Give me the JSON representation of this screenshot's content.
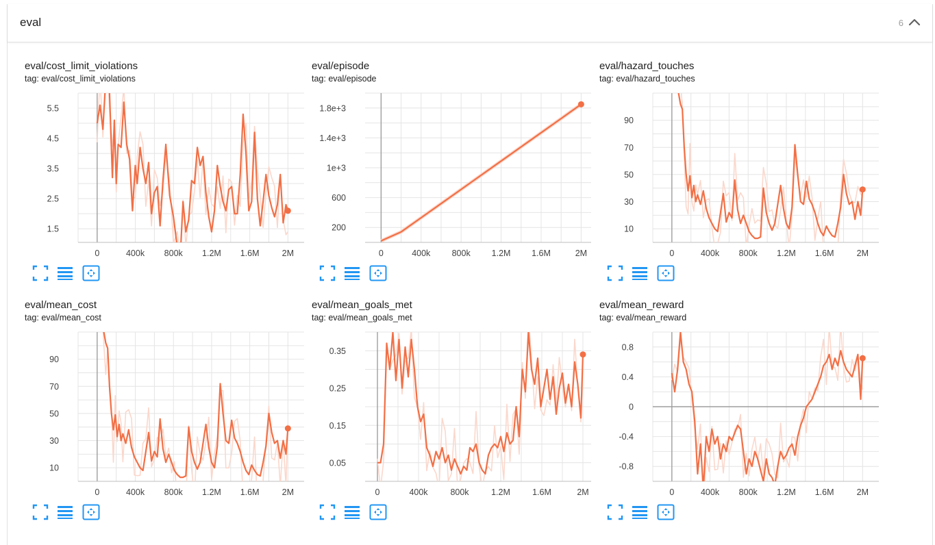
{
  "section": {
    "title": "eval",
    "count": "6"
  },
  "colors": {
    "line": "#f26f45",
    "raw": "#fbd7cb",
    "grid": "#e4e4e4",
    "axis": "#9e9e9e",
    "tool": "#2196f3"
  },
  "icons": {
    "toggle": "chevron-up-icon",
    "fullscreen": "fullscreen-icon",
    "data": "list-icon",
    "fit": "fit-domain-icon"
  },
  "chart_data": [
    {
      "type": "line",
      "title": "eval/cost_limit_violations",
      "tag": "tag: eval/cost_limit_violations",
      "xlim": [
        -200000,
        2170000
      ],
      "ylim": [
        1.05,
        6.0
      ],
      "xticks": [
        0,
        400000,
        800000,
        1200000,
        1600000,
        2000000
      ],
      "xtick_labels": [
        "0",
        "400k",
        "800k",
        "1.2M",
        "1.6M",
        "2M"
      ],
      "yticks": [
        1.5,
        2.5,
        3.5,
        4.5,
        5.5
      ],
      "ytick_labels": [
        "1.5",
        "2.5",
        "3.5",
        "4.5",
        "5.5"
      ],
      "zero_line_y": false,
      "series": [
        {
          "x": [
            0,
            30000,
            60000,
            100000,
            130000,
            160000,
            180000,
            200000,
            220000,
            250000,
            280000,
            310000,
            340000,
            370000,
            400000,
            420000,
            450000,
            480000,
            510000,
            540000,
            570000,
            600000,
            630000,
            660000,
            690000,
            720000,
            760000,
            800000,
            840000,
            870000,
            900000,
            930000,
            960000,
            990000,
            1020000,
            1050000,
            1080000,
            1110000,
            1140000,
            1170000,
            1200000,
            1230000,
            1260000,
            1290000,
            1320000,
            1350000,
            1380000,
            1410000,
            1440000,
            1470000,
            1500000,
            1530000,
            1560000,
            1590000,
            1620000,
            1650000,
            1680000,
            1710000,
            1740000,
            1770000,
            1800000,
            1830000,
            1860000,
            1890000,
            1920000,
            1950000,
            1980000,
            2000000
          ],
          "y": [
            5.0,
            5.6,
            4.8,
            7.0,
            6.0,
            3.2,
            5.1,
            3.0,
            4.3,
            4.2,
            5.7,
            4.3,
            3.8,
            2.1,
            3.6,
            3.0,
            4.2,
            3.5,
            3.0,
            3.7,
            2.0,
            2.7,
            2.9,
            1.6,
            3.1,
            4.3,
            2.6,
            1.9,
            0.9,
            0.5,
            2.4,
            1.4,
            1.8,
            3.1,
            3.0,
            4.2,
            3.6,
            3.9,
            2.7,
            1.9,
            1.4,
            2.1,
            3.6,
            2.9,
            2.4,
            2.1,
            2.8,
            2.9,
            2.0,
            2.0,
            3.3,
            5.3,
            4.0,
            2.1,
            2.4,
            4.7,
            2.5,
            1.6,
            2.4,
            3.3,
            2.6,
            2.2,
            1.9,
            2.3,
            3.3,
            1.7,
            2.3,
            2.1
          ]
        }
      ]
    },
    {
      "type": "line",
      "title": "eval/episode",
      "tag": "tag: eval/episode",
      "xlim": [
        -160000,
        2100000
      ],
      "ylim": [
        0,
        2000
      ],
      "xticks": [
        0,
        400000,
        800000,
        1200000,
        1600000,
        2000000
      ],
      "xtick_labels": [
        "0",
        "400k",
        "800k",
        "1.2M",
        "1.6M",
        "2M"
      ],
      "yticks": [
        200,
        600,
        1000,
        1400,
        1800
      ],
      "ytick_labels": [
        "200",
        "600",
        "1e+3",
        "1.4e+3",
        "1.8e+3"
      ],
      "zero_line_y": false,
      "series": [
        {
          "x": [
            0,
            200000,
            400000,
            600000,
            800000,
            1000000,
            1200000,
            1400000,
            1600000,
            1800000,
            2000000
          ],
          "y": [
            20,
            140,
            330,
            520,
            710,
            900,
            1090,
            1280,
            1470,
            1660,
            1850
          ]
        }
      ]
    },
    {
      "type": "line",
      "title": "eval/hazard_touches",
      "tag": "tag: eval/hazard_touches",
      "xlim": [
        -200000,
        2170000
      ],
      "ylim": [
        0,
        110
      ],
      "xticks": [
        0,
        400000,
        800000,
        1200000,
        1600000,
        2000000
      ],
      "xtick_labels": [
        "0",
        "400k",
        "800k",
        "1.2M",
        "1.6M",
        "2M"
      ],
      "yticks": [
        10,
        30,
        50,
        70,
        90
      ],
      "ytick_labels": [
        "10",
        "30",
        "50",
        "70",
        "90"
      ],
      "zero_line_y": false,
      "series": [
        {
          "x": [
            50000,
            70000,
            90000,
            110000,
            130000,
            150000,
            170000,
            190000,
            210000,
            230000,
            250000,
            270000,
            300000,
            330000,
            360000,
            390000,
            420000,
            450000,
            480000,
            510000,
            540000,
            570000,
            600000,
            630000,
            660000,
            690000,
            720000,
            750000,
            780000,
            810000,
            840000,
            870000,
            900000,
            930000,
            960000,
            990000,
            1020000,
            1050000,
            1080000,
            1110000,
            1140000,
            1170000,
            1200000,
            1230000,
            1260000,
            1290000,
            1320000,
            1350000,
            1380000,
            1410000,
            1440000,
            1470000,
            1500000,
            1530000,
            1560000,
            1590000,
            1620000,
            1650000,
            1680000,
            1710000,
            1740000,
            1770000,
            1800000,
            1830000,
            1860000,
            1890000,
            1920000,
            1950000,
            1980000,
            2000000
          ],
          "y": [
            115,
            110,
            102,
            98,
            70,
            50,
            38,
            49,
            33,
            42,
            30,
            35,
            28,
            38,
            25,
            18,
            14,
            10,
            8,
            22,
            36,
            15,
            22,
            18,
            46,
            24,
            14,
            20,
            14,
            8,
            5,
            3,
            3,
            4,
            40,
            22,
            14,
            9,
            14,
            28,
            42,
            25,
            14,
            10,
            26,
            72,
            50,
            30,
            28,
            45,
            32,
            28,
            22,
            14,
            8,
            5,
            12,
            8,
            5,
            4,
            14,
            26,
            50,
            36,
            28,
            30,
            17,
            30,
            20,
            39
          ]
        }
      ]
    },
    {
      "type": "line",
      "title": "eval/mean_cost",
      "tag": "tag: eval/mean_cost",
      "xlim": [
        -200000,
        2170000
      ],
      "ylim": [
        0,
        110
      ],
      "xticks": [
        0,
        400000,
        800000,
        1200000,
        1600000,
        2000000
      ],
      "xtick_labels": [
        "0",
        "400k",
        "800k",
        "1.2M",
        "1.6M",
        "2M"
      ],
      "yticks": [
        10,
        30,
        50,
        70,
        90
      ],
      "ytick_labels": [
        "10",
        "30",
        "50",
        "70",
        "90"
      ],
      "zero_line_y": false,
      "series": [
        {
          "x": [
            50000,
            70000,
            90000,
            110000,
            130000,
            150000,
            170000,
            190000,
            210000,
            230000,
            250000,
            270000,
            300000,
            330000,
            360000,
            390000,
            420000,
            450000,
            480000,
            510000,
            540000,
            570000,
            600000,
            630000,
            660000,
            690000,
            720000,
            750000,
            780000,
            810000,
            840000,
            870000,
            900000,
            930000,
            960000,
            990000,
            1020000,
            1050000,
            1080000,
            1110000,
            1140000,
            1170000,
            1200000,
            1230000,
            1260000,
            1290000,
            1320000,
            1350000,
            1380000,
            1410000,
            1440000,
            1470000,
            1500000,
            1530000,
            1560000,
            1590000,
            1620000,
            1650000,
            1680000,
            1710000,
            1740000,
            1770000,
            1800000,
            1830000,
            1860000,
            1890000,
            1920000,
            1950000,
            1980000,
            2000000
          ],
          "y": [
            115,
            110,
            102,
            98,
            70,
            50,
            38,
            49,
            33,
            42,
            30,
            35,
            28,
            38,
            25,
            18,
            14,
            10,
            8,
            22,
            36,
            15,
            22,
            18,
            46,
            24,
            14,
            20,
            14,
            8,
            5,
            3,
            3,
            4,
            40,
            22,
            14,
            9,
            14,
            28,
            42,
            25,
            14,
            10,
            26,
            72,
            50,
            30,
            28,
            45,
            32,
            28,
            22,
            14,
            8,
            5,
            12,
            8,
            5,
            4,
            14,
            26,
            50,
            36,
            28,
            30,
            17,
            30,
            20,
            39
          ]
        }
      ]
    },
    {
      "type": "line",
      "title": "eval/mean_goals_met",
      "tag": "tag: eval/mean_goals_met",
      "xlim": [
        -120000,
        2080000
      ],
      "ylim": [
        0,
        0.4
      ],
      "xticks": [
        0,
        400000,
        800000,
        1200000,
        1600000,
        2000000
      ],
      "xtick_labels": [
        "0",
        "400k",
        "800k",
        "1.2M",
        "1.6M",
        "2M"
      ],
      "yticks": [
        0.05,
        0.15,
        0.25,
        0.35
      ],
      "ytick_labels": [
        "0.05",
        "0.15",
        "0.25",
        "0.35"
      ],
      "zero_line_y": false,
      "series": [
        {
          "x": [
            0,
            30000,
            60000,
            90000,
            120000,
            150000,
            180000,
            210000,
            240000,
            270000,
            300000,
            330000,
            360000,
            390000,
            420000,
            450000,
            480000,
            510000,
            540000,
            570000,
            600000,
            630000,
            660000,
            690000,
            720000,
            750000,
            780000,
            810000,
            840000,
            870000,
            900000,
            930000,
            960000,
            990000,
            1020000,
            1050000,
            1080000,
            1110000,
            1140000,
            1170000,
            1200000,
            1230000,
            1260000,
            1290000,
            1320000,
            1350000,
            1380000,
            1410000,
            1440000,
            1470000,
            1500000,
            1530000,
            1560000,
            1590000,
            1620000,
            1650000,
            1680000,
            1710000,
            1740000,
            1770000,
            1800000,
            1830000,
            1860000,
            1890000,
            1920000,
            1950000,
            1980000,
            2000000
          ],
          "y": [
            0.05,
            0.05,
            0.1,
            0.37,
            0.3,
            0.4,
            0.27,
            0.38,
            0.25,
            0.36,
            0.28,
            0.38,
            0.3,
            0.2,
            0.16,
            0.18,
            0.09,
            0.07,
            0.04,
            0.08,
            0.06,
            0.09,
            0.05,
            0.07,
            0.03,
            0.06,
            0.04,
            0.02,
            0.04,
            0.03,
            0.09,
            0.08,
            0.1,
            0.05,
            0.03,
            0.02,
            0.07,
            0.09,
            0.1,
            0.09,
            0.12,
            0.08,
            0.13,
            0.1,
            0.11,
            0.2,
            0.12,
            0.3,
            0.24,
            0.4,
            0.3,
            0.26,
            0.33,
            0.2,
            0.25,
            0.3,
            0.22,
            0.28,
            0.18,
            0.25,
            0.29,
            0.21,
            0.26,
            0.2,
            0.32,
            0.26,
            0.17,
            0.34
          ]
        }
      ]
    },
    {
      "type": "line",
      "title": "eval/mean_reward",
      "tag": "tag: eval/mean_reward",
      "xlim": [
        -200000,
        2170000
      ],
      "ylim": [
        -1.0,
        1.0
      ],
      "xticks": [
        0,
        400000,
        800000,
        1200000,
        1600000,
        2000000
      ],
      "xtick_labels": [
        "0",
        "400k",
        "800k",
        "1.2M",
        "1.6M",
        "2M"
      ],
      "yticks": [
        -0.8,
        -0.4,
        0,
        0.4,
        0.8
      ],
      "ytick_labels": [
        "-0.8",
        "-0.4",
        "0",
        "0.4",
        "0.8"
      ],
      "zero_line_y": true,
      "series": [
        {
          "x": [
            0,
            30000,
            60000,
            90000,
            120000,
            150000,
            180000,
            210000,
            240000,
            270000,
            300000,
            330000,
            360000,
            390000,
            420000,
            450000,
            480000,
            510000,
            540000,
            570000,
            600000,
            630000,
            660000,
            690000,
            720000,
            750000,
            780000,
            810000,
            840000,
            870000,
            900000,
            930000,
            960000,
            990000,
            1020000,
            1050000,
            1080000,
            1110000,
            1140000,
            1170000,
            1200000,
            1230000,
            1260000,
            1290000,
            1320000,
            1350000,
            1380000,
            1410000,
            1440000,
            1470000,
            1500000,
            1530000,
            1560000,
            1590000,
            1620000,
            1650000,
            1680000,
            1710000,
            1740000,
            1770000,
            1800000,
            1830000,
            1860000,
            1890000,
            1920000,
            1950000,
            1980000,
            2000000
          ],
          "y": [
            0.45,
            0.2,
            0.5,
            1.0,
            0.6,
            0.5,
            0.3,
            0.2,
            -0.2,
            -0.9,
            -0.5,
            -1.1,
            -0.4,
            -0.6,
            -0.3,
            -0.5,
            -0.4,
            -0.7,
            -0.5,
            -0.6,
            -0.4,
            -0.45,
            -0.35,
            -0.25,
            -0.3,
            -0.6,
            -0.9,
            -0.7,
            -0.8,
            -0.6,
            -0.7,
            -0.85,
            -1.0,
            -0.7,
            -0.9,
            -0.95,
            -1.05,
            -0.8,
            -0.6,
            -0.7,
            -0.65,
            -0.55,
            -0.5,
            -0.65,
            -0.4,
            -0.25,
            -0.15,
            0.0,
            0.05,
            0.1,
            0.2,
            0.3,
            0.4,
            0.55,
            0.6,
            0.7,
            0.5,
            0.65,
            0.55,
            0.75,
            0.6,
            0.5,
            0.45,
            0.4,
            0.55,
            0.7,
            0.1,
            0.65
          ]
        }
      ]
    }
  ]
}
